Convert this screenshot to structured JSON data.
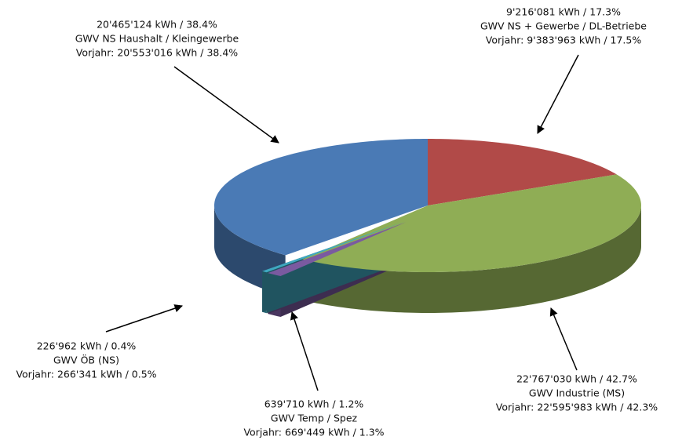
{
  "chart_data": {
    "type": "pie",
    "categories": [
      "GWV NS Haushalt / Kleingewerbe",
      "GWV NS + Gewerbe / DL-Betriebe",
      "GWV Industrie (MS)",
      "GWV Temp / Spez",
      "GWV ÖB (NS)"
    ],
    "values": [
      20465124,
      9216081,
      22767030,
      639710,
      226962
    ],
    "value_labels": [
      "20'465'124 kWh / 38.4%",
      "9'216'081 kWh / 17.3%",
      "22'767'030 kWh / 42.7%",
      "639'710 kWh / 1.2%",
      "226'962 kWh / 0.4%"
    ],
    "previous_labels": [
      "Vorjahr: 20'553'016 kWh / 38.4%",
      "Vorjahr: 9'383'963 kWh / 17.5%",
      "Vorjahr: 22'595'983 kWh / 42.3%",
      "Vorjahr: 669'449 kWh / 1.3%",
      "Vorjahr: 266'341 kWh / 0.5%"
    ],
    "colors": [
      "#4a7ab5",
      "#b14a48",
      "#8fad55",
      "#7a5aa0",
      "#3fa8c0"
    ],
    "exploded": [
      false,
      false,
      false,
      true,
      true
    ]
  }
}
